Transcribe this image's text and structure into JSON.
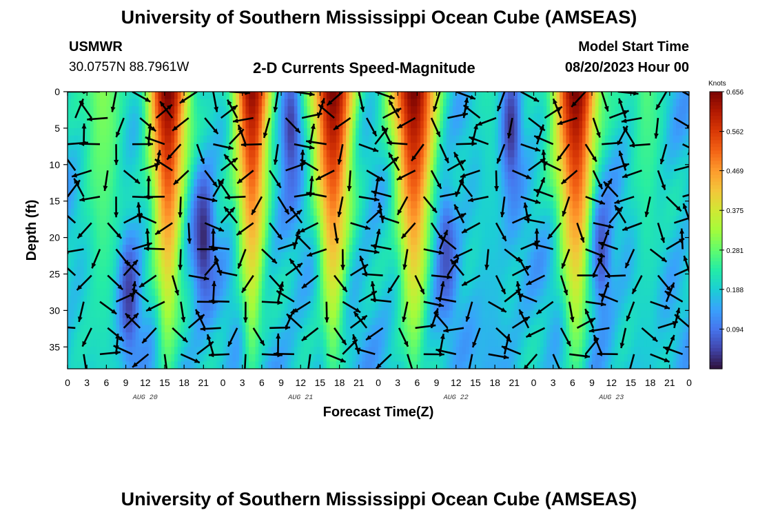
{
  "header": {
    "title": "University of Southern Mississippi Ocean Cube (AMSEAS)",
    "station": "USMWR",
    "coords": "30.0757N  88.7961W",
    "subtitle": "2-D Currents Speed-Magnitude",
    "model_start_label": "Model Start Time",
    "model_start_value": "08/20/2023 Hour 00"
  },
  "footer": {
    "title": "University of Southern Mississippi Ocean Cube (AMSEAS)"
  },
  "chart_data": {
    "type": "heatmap",
    "title": "2-D Currents Speed-Magnitude",
    "xlabel": "Forecast Time(Z)",
    "ylabel": "Depth (ft)",
    "x_ticks": [
      "0",
      "3",
      "6",
      "9",
      "12",
      "15",
      "18",
      "21",
      "0",
      "3",
      "6",
      "9",
      "12",
      "15",
      "18",
      "21",
      "0",
      "3",
      "6",
      "9",
      "12",
      "15",
      "18",
      "21",
      "0",
      "3",
      "6",
      "9",
      "12",
      "15",
      "18",
      "21",
      "0"
    ],
    "day_labels": [
      "AUG 20",
      "AUG 21",
      "AUG 22",
      "AUG 23"
    ],
    "x_range_hours": [
      0,
      96
    ],
    "y_ticks": [
      "0",
      "5",
      "10",
      "15",
      "20",
      "25",
      "30",
      "35"
    ],
    "ylim": [
      0,
      38
    ],
    "colorbar": {
      "unit": "Knots",
      "ticks": [
        "0.656",
        "0.562",
        "0.469",
        "0.375",
        "0.281",
        "0.188",
        "0.094"
      ],
      "range": [
        0.0,
        0.656
      ],
      "colors": [
        "#30123b",
        "#4145ab",
        "#4675ed",
        "#39a2fc",
        "#1bcfd4",
        "#24eca6",
        "#61fc6c",
        "#a4fc3b",
        "#d1e834",
        "#f3c63a",
        "#fe9b2d",
        "#f36315",
        "#d93806",
        "#b11901",
        "#7a0403"
      ]
    },
    "speed_maxima": [
      {
        "t_hours": 5.5,
        "speed": 0.34,
        "width": 3.2
      },
      {
        "t_hours": 15.5,
        "speed": 0.66,
        "width": 3.2
      },
      {
        "t_hours": 28.5,
        "speed": 0.64,
        "width": 3.0
      },
      {
        "t_hours": 41.0,
        "speed": 0.66,
        "width": 3.4
      },
      {
        "t_hours": 53.5,
        "speed": 0.66,
        "width": 3.6
      },
      {
        "t_hours": 65.5,
        "speed": 0.25,
        "width": 3.0
      },
      {
        "t_hours": 78.5,
        "speed": 0.66,
        "width": 3.6
      },
      {
        "t_hours": 89.5,
        "speed": 0.3,
        "width": 2.5
      }
    ],
    "speed_minima": [
      {
        "t_hours": 9.5,
        "depth_ft": 28,
        "speed": 0.04
      },
      {
        "t_hours": 21.0,
        "depth_ft": 20,
        "speed": 0.02
      },
      {
        "t_hours": 34.5,
        "depth_ft": 5,
        "speed": 0.04
      },
      {
        "t_hours": 58.5,
        "depth_ft": 22,
        "speed": 0.06
      },
      {
        "t_hours": 68.5,
        "depth_ft": 5,
        "speed": 0.03
      },
      {
        "t_hours": 82.5,
        "depth_ft": 22,
        "speed": 0.06
      }
    ]
  }
}
